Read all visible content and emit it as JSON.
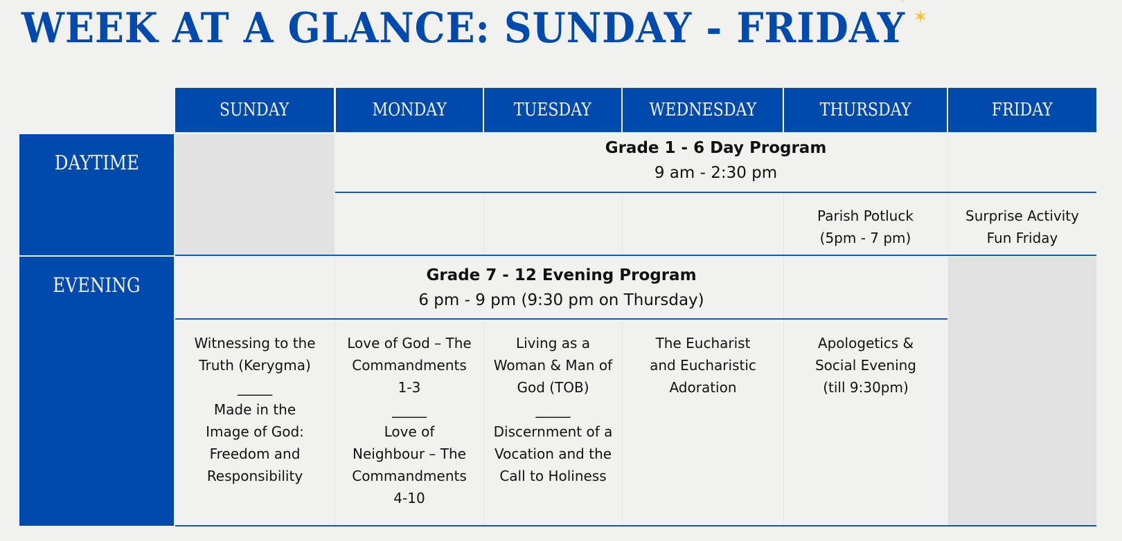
{
  "title": "WEEK AT A GLANCE: SUNDAY - FRIDAY",
  "days": [
    "SUNDAY",
    "MONDAY",
    "TUESDAY",
    "WEDNESDAY",
    "THURSDAY",
    "FRIDAY"
  ],
  "rows": {
    "daytime": "DAYTIME",
    "evening": "EVENING"
  },
  "day_program": {
    "title": "Grade 1 - 6 Day Program",
    "time": "9 am - 2:30 pm"
  },
  "day_extras": {
    "thursday": [
      "Parish Potluck",
      "(5pm - 7 pm)"
    ],
    "friday": [
      "Surprise Activity",
      "Fun Friday"
    ]
  },
  "evening_program": {
    "title": "Grade 7 - 12 Evening Program",
    "time": "6 pm - 9 pm (9:30 pm on Thursday)"
  },
  "evening_topics": {
    "sunday": [
      "Witnessing to the",
      "Truth (Kerygma)",
      "_____",
      "Made in the",
      "Image of God:",
      "Freedom and",
      "Responsibility"
    ],
    "monday": [
      "Love of God – The",
      "Commandments",
      "1-3",
      "_____",
      "Love of",
      "Neighbour – The",
      "Commandments",
      "4-10"
    ],
    "tuesday": [
      "Living as a",
      "Woman & Man of",
      "God (TOB)",
      "_____",
      "Discernment of a",
      "Vocation and the",
      "Call to Holiness"
    ],
    "wednesday": [
      "The Eucharist",
      "and Eucharistic",
      "Adoration"
    ],
    "thursday": [
      "Apologetics &",
      "Social Evening",
      "(till 9:30pm)"
    ]
  },
  "colors": {
    "brand_blue": "#004aad",
    "closed_gray": "#e1e1e1",
    "star": "#f7c22f"
  }
}
